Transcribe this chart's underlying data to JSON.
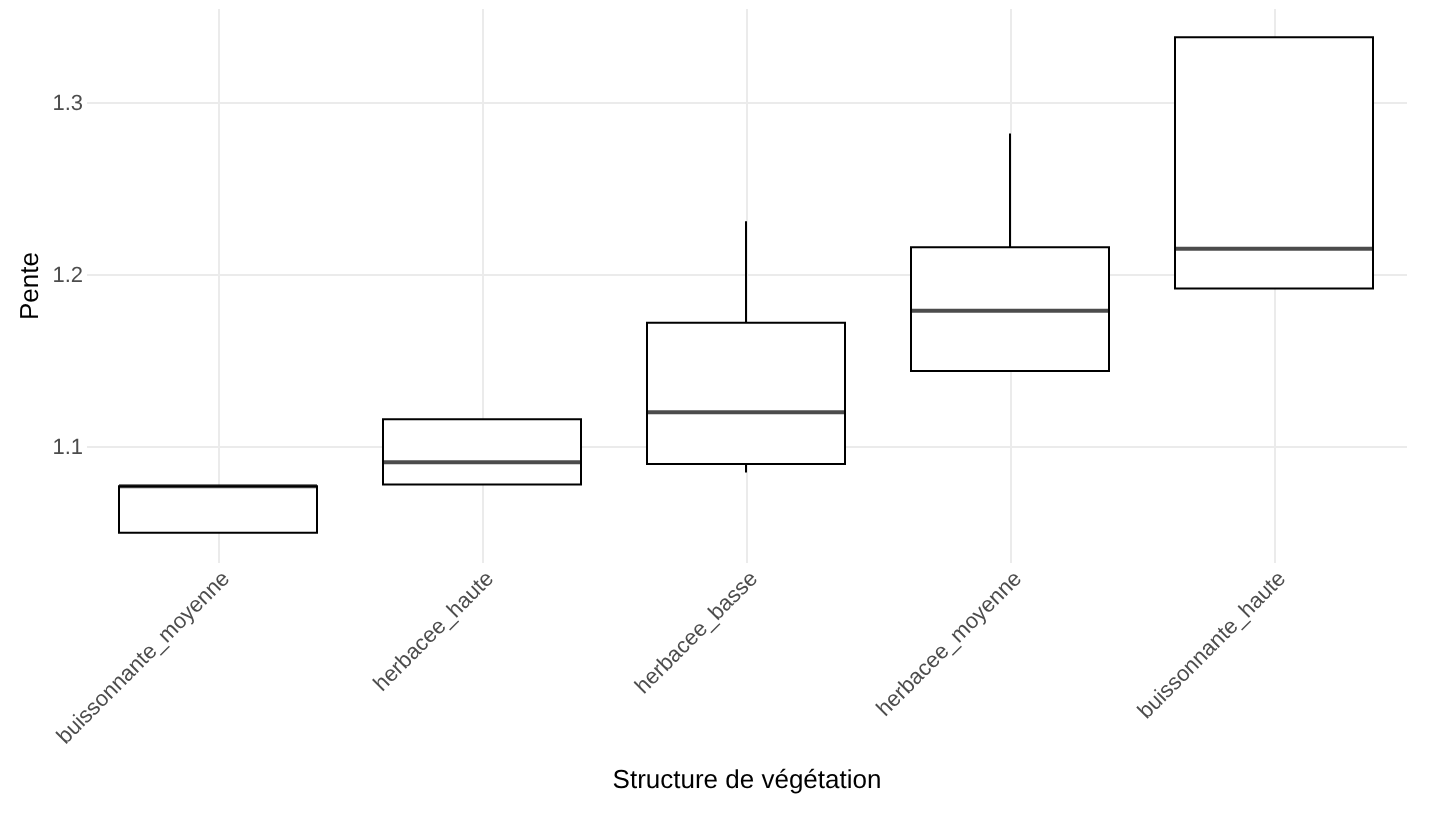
{
  "chart_data": {
    "type": "box",
    "xlabel": "Structure de végétation",
    "ylabel": "Pente",
    "categories": [
      "buissonnante_moyenne",
      "herbacee_haute",
      "herbacee_basse",
      "herbacee_moyenne",
      "buissonnante_haute"
    ],
    "boxes": [
      {
        "low": 1.05,
        "q1": 1.05,
        "median": 1.077,
        "q3": 1.077,
        "high": 1.077
      },
      {
        "low": 1.078,
        "q1": 1.078,
        "median": 1.091,
        "q3": 1.116,
        "high": 1.116
      },
      {
        "low": 1.085,
        "q1": 1.09,
        "median": 1.12,
        "q3": 1.172,
        "high": 1.231
      },
      {
        "low": 1.144,
        "q1": 1.144,
        "median": 1.179,
        "q3": 1.216,
        "high": 1.282
      },
      {
        "low": 1.192,
        "q1": 1.192,
        "median": 1.215,
        "q3": 1.338,
        "high": 1.338
      }
    ],
    "ylim": [
      1.033,
      1.355
    ],
    "yticks": [
      1.1,
      1.2,
      1.3
    ],
    "grid": true
  }
}
